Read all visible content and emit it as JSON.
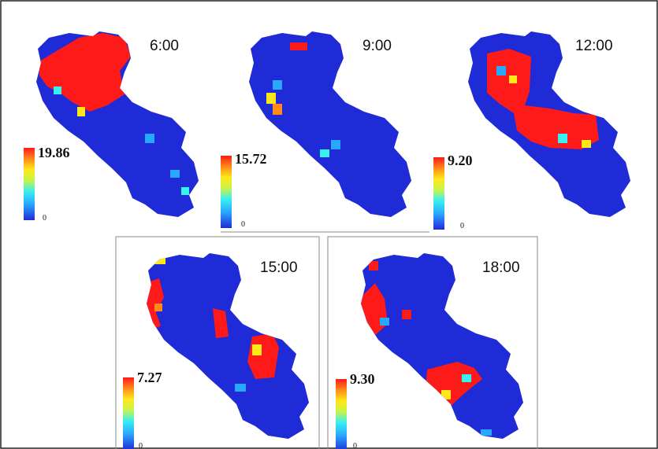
{
  "colors": {
    "background": "#ffffff",
    "low": "#1f2bd6",
    "high": "#ff1a1a",
    "scale_stops": [
      "#1f2bd6",
      "#2aa7ff",
      "#39f0f0",
      "#c8f34a",
      "#ffe81a",
      "#ff8a1a",
      "#ff1a1a"
    ]
  },
  "maps": [
    {
      "time": "6:00",
      "scale_max": "19.86",
      "scale_min": "0"
    },
    {
      "time": "9:00",
      "scale_max": "15.72",
      "scale_min": "0"
    },
    {
      "time": "12:00",
      "scale_max": "9.20",
      "scale_min": "0"
    },
    {
      "time": "15:00",
      "scale_max": "7.27",
      "scale_min": "0"
    },
    {
      "time": "18:00",
      "scale_max": "9.30",
      "scale_min": "0"
    }
  ]
}
